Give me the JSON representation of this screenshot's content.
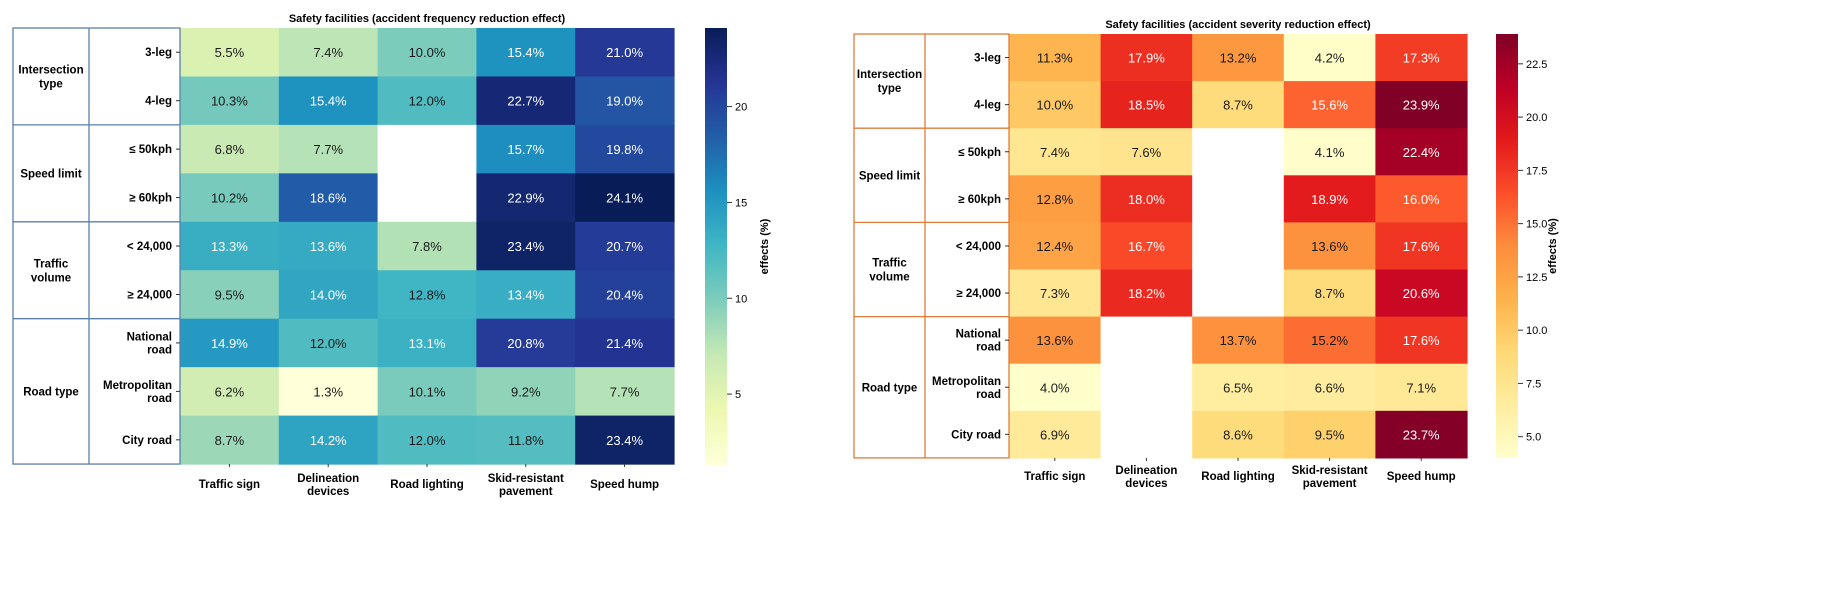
{
  "chart_data": [
    {
      "type": "heatmap",
      "title": "Safety facilities (accident frequency reduction effect)",
      "colormap": "YlGnBu",
      "x_categories": [
        "Traffic sign",
        "Delineation devices",
        "Road lighting",
        "Skid-resistant pavement",
        "Speed hump"
      ],
      "row_labels": [
        "3-leg",
        "4-leg",
        "≤ 50kph",
        "≥ 60kph",
        "< 24,000",
        "≥ 24,000",
        "National road",
        "Metropolitan road",
        "City road"
      ],
      "groups": [
        {
          "label": "Intersection type",
          "rows": 2
        },
        {
          "label": "Speed limit",
          "rows": 2
        },
        {
          "label": "Traffic volume",
          "rows": 2
        },
        {
          "label": "Road type",
          "rows": 3
        }
      ],
      "values": [
        [
          5.5,
          7.4,
          10.0,
          15.4,
          21.0
        ],
        [
          10.3,
          15.4,
          12.0,
          22.7,
          19.0
        ],
        [
          6.8,
          7.7,
          null,
          15.7,
          19.8
        ],
        [
          10.2,
          18.6,
          null,
          22.9,
          24.1
        ],
        [
          13.3,
          13.6,
          7.8,
          23.4,
          20.7
        ],
        [
          9.5,
          14.0,
          12.8,
          13.4,
          20.4
        ],
        [
          14.9,
          12.0,
          13.1,
          20.8,
          21.4
        ],
        [
          6.2,
          1.3,
          10.1,
          9.2,
          7.7
        ],
        [
          8.7,
          14.2,
          12.0,
          11.8,
          23.4
        ]
      ],
      "cell_labels": [
        [
          "5.5%",
          "7.4%",
          "10.0%",
          "15.4%",
          "21.0%"
        ],
        [
          "10.3%",
          "15.4%",
          "12.0%",
          "22.7%",
          "19.0%"
        ],
        [
          "6.8%",
          "7.7%",
          "",
          "15.7%",
          "19.8%"
        ],
        [
          "10.2%",
          "18.6%",
          "",
          "22.9%",
          "24.1%"
        ],
        [
          "13.3%",
          "13.6%",
          "7.8%",
          "23.4%",
          "20.7%"
        ],
        [
          "9.5%",
          "14.0%",
          "12.8%",
          "13.4%",
          "20.4%"
        ],
        [
          "14.9%",
          "12.0%",
          "13.1%",
          "20.8%",
          "21.4%"
        ],
        [
          "6.2%",
          "1.3%",
          "10.1%",
          "9.2%",
          "7.7%"
        ],
        [
          "8.7%",
          "14.2%",
          "12.0%",
          "11.8%",
          "23.4%"
        ]
      ],
      "colorbar": {
        "label": "effects (%)",
        "vmin": 1.3,
        "vmax": 24.1,
        "ticks": [
          5,
          10,
          15,
          20
        ],
        "tick_labels": [
          "5",
          "10",
          "15",
          "20"
        ]
      },
      "colors": {
        "stops": [
          "#ffffd9",
          "#edf8b1",
          "#c7e9b4",
          "#7fcdbb",
          "#41b6c4",
          "#1d91c0",
          "#225ea8",
          "#253494",
          "#081d58"
        ],
        "line": "#5a7fa8",
        "missing": "#ffffff"
      }
    },
    {
      "type": "heatmap",
      "title": "Safety facilities (accident severity reduction effect)",
      "colormap": "YlOrRd",
      "x_categories": [
        "Traffic sign",
        "Delineation devices",
        "Road lighting",
        "Skid-resistant pavement",
        "Speed hump"
      ],
      "row_labels": [
        "3-leg",
        "4-leg",
        "≤ 50kph",
        "≥ 60kph",
        "< 24,000",
        "≥ 24,000",
        "National road",
        "Metropolitan road",
        "City road"
      ],
      "groups": [
        {
          "label": "Intersection type",
          "rows": 2
        },
        {
          "label": "Speed limit",
          "rows": 2
        },
        {
          "label": "Traffic volume",
          "rows": 2
        },
        {
          "label": "Road type",
          "rows": 3
        }
      ],
      "values": [
        [
          11.3,
          17.9,
          13.2,
          4.2,
          17.3
        ],
        [
          10.0,
          18.5,
          8.7,
          15.6,
          23.9
        ],
        [
          7.4,
          7.6,
          null,
          4.1,
          22.4
        ],
        [
          12.8,
          18.0,
          null,
          18.9,
          16.0
        ],
        [
          12.4,
          16.7,
          null,
          13.6,
          17.6
        ],
        [
          7.3,
          18.2,
          null,
          8.7,
          20.6
        ],
        [
          13.6,
          null,
          13.7,
          15.2,
          17.6
        ],
        [
          4.0,
          null,
          6.5,
          6.6,
          7.1
        ],
        [
          6.9,
          null,
          8.6,
          9.5,
          23.7
        ]
      ],
      "cell_labels": [
        [
          "11.3%",
          "17.9%",
          "13.2%",
          "4.2%",
          "17.3%"
        ],
        [
          "10.0%",
          "18.5%",
          "8.7%",
          "15.6%",
          "23.9%"
        ],
        [
          "7.4%",
          "7.6%",
          "",
          "4.1%",
          "22.4%"
        ],
        [
          "12.8%",
          "18.0%",
          "",
          "18.9%",
          "16.0%"
        ],
        [
          "12.4%",
          "16.7%",
          "",
          "13.6%",
          "17.6%"
        ],
        [
          "7.3%",
          "18.2%",
          "",
          "8.7%",
          "20.6%"
        ],
        [
          "13.6%",
          "",
          "13.7%",
          "15.2%",
          "17.6%"
        ],
        [
          "4.0%",
          "",
          "6.5%",
          "6.6%",
          "7.1%"
        ],
        [
          "6.9%",
          "",
          "8.6%",
          "9.5%",
          "23.7%"
        ]
      ],
      "colorbar": {
        "label": "effects (%)",
        "vmin": 4.0,
        "vmax": 23.9,
        "ticks": [
          5,
          7.5,
          10,
          12.5,
          15,
          17.5,
          20,
          22.5
        ],
        "tick_labels": [
          "5.0",
          "7.5",
          "10.0",
          "12.5",
          "15.0",
          "17.5",
          "20.0",
          "22.5"
        ]
      },
      "colors": {
        "stops": [
          "#ffffcc",
          "#ffeda0",
          "#fed976",
          "#feb24c",
          "#fd8d3c",
          "#fc4e2a",
          "#e31a1c",
          "#bd0026",
          "#800026"
        ],
        "line": "#e07b39",
        "missing": "#ffffff"
      }
    }
  ]
}
